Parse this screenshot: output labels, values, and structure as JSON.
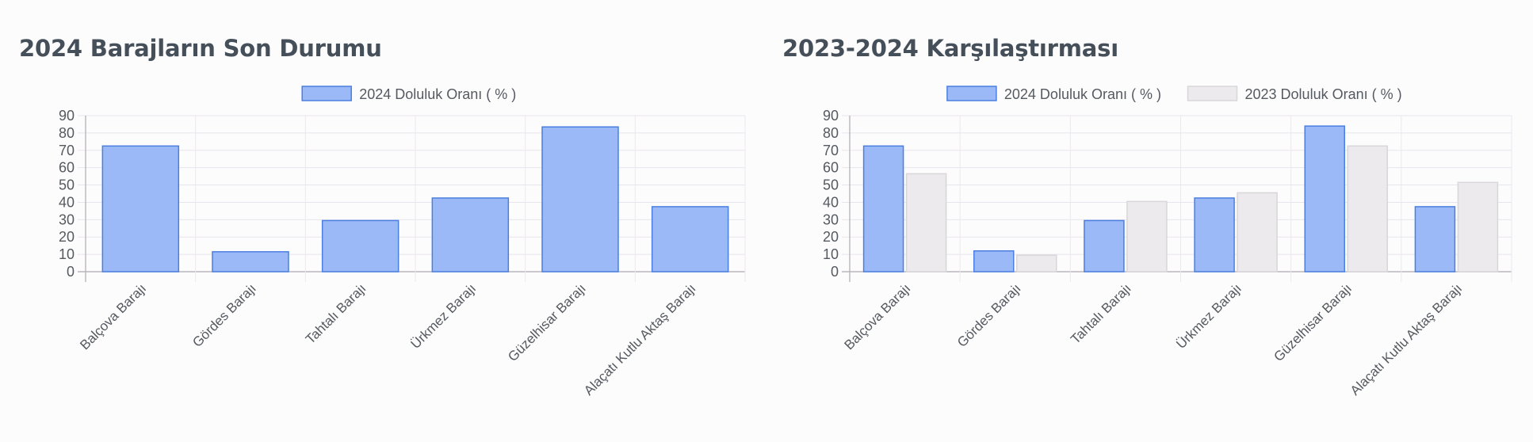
{
  "chart_data": [
    {
      "type": "bar",
      "title": "2024 Barajların Son Durumu",
      "categories": [
        "Balçova Barajı",
        "Gördes Barajı",
        "Tahtalı Barajı",
        "Ürkmez Barajı",
        "Güzelhisar Barajı",
        "Alaçatı Kutlu Aktaş Barajı"
      ],
      "series": [
        {
          "name": "2024 Doluluk Oranı ( % )",
          "values": [
            72.5,
            11.5,
            29.5,
            42.5,
            83.5,
            37.5
          ],
          "color": "#9bb9f7",
          "border": "#4a7fe0"
        }
      ],
      "yticks": [
        0,
        10,
        20,
        30,
        40,
        50,
        60,
        70,
        80,
        90
      ],
      "ylim": [
        0,
        90
      ],
      "grid": true,
      "legend": "top-center",
      "xlabel": "",
      "ylabel": ""
    },
    {
      "type": "bar",
      "title": "2023-2024 Karşılaştırması",
      "categories": [
        "Balçova Barajı",
        "Gördes Barajı",
        "Tahtalı Barajı",
        "Ürkmez Barajı",
        "Güzelhisar Barajı",
        "Alaçatı Kutlu Aktaş Barajı"
      ],
      "series": [
        {
          "name": "2024 Doluluk Oranı ( % )",
          "values": [
            72.5,
            12,
            29.5,
            42.5,
            84,
            37.5
          ],
          "color": "#9bb9f7",
          "border": "#4a7fe0"
        },
        {
          "name": "2023 Doluluk Oranı ( % )",
          "values": [
            56.5,
            9.5,
            40.5,
            45.5,
            72.5,
            51.5
          ],
          "color": "#eceaec",
          "border": "#d8d6d9"
        }
      ],
      "yticks": [
        0,
        10,
        20,
        30,
        40,
        50,
        60,
        70,
        80,
        90
      ],
      "ylim": [
        0,
        90
      ],
      "grid": true,
      "legend": "top-center",
      "xlabel": "",
      "ylabel": ""
    }
  ]
}
